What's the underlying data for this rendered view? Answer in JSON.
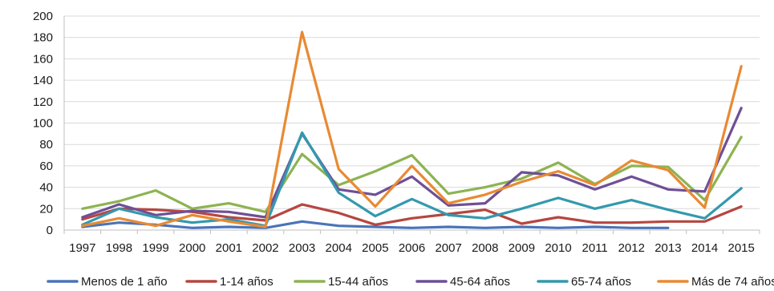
{
  "chart_data": {
    "type": "line",
    "x": [
      "1997",
      "1998",
      "1999",
      "2000",
      "2001",
      "2002",
      "2003",
      "2004",
      "2005",
      "2006",
      "2007",
      "2008",
      "2009",
      "2010",
      "2011",
      "2012",
      "2013",
      "2014",
      "2015"
    ],
    "ylim": [
      0,
      200
    ],
    "yticks": [
      0,
      20,
      40,
      60,
      80,
      100,
      120,
      140,
      160,
      180,
      200
    ],
    "grid": "horizontal",
    "legend_position": "bottom",
    "series": [
      {
        "name": "Menos de 1 año",
        "color": "#4a74b8",
        "values": [
          3,
          7,
          5,
          2,
          3,
          2,
          8,
          4,
          3,
          2,
          3,
          2,
          3,
          2,
          3,
          2,
          2,
          null,
          null
        ]
      },
      {
        "name": "1-14 años",
        "color": "#b64640",
        "values": [
          10,
          20,
          19,
          17,
          12,
          9,
          24,
          16,
          5,
          11,
          15,
          19,
          6,
          12,
          7,
          7,
          8,
          8,
          22
        ]
      },
      {
        "name": "15-44 años",
        "color": "#8db352",
        "values": [
          20,
          27,
          37,
          20,
          25,
          17,
          71,
          42,
          55,
          70,
          34,
          40,
          48,
          63,
          43,
          60,
          59,
          28,
          87
        ]
      },
      {
        "name": "45-64 años",
        "color": "#6f4f96",
        "values": [
          12,
          24,
          14,
          18,
          17,
          12,
          90,
          38,
          33,
          50,
          23,
          25,
          54,
          51,
          38,
          50,
          38,
          36,
          114
        ]
      },
      {
        "name": "65-74 años",
        "color": "#3399ae",
        "values": [
          5,
          20,
          12,
          7,
          10,
          4,
          91,
          35,
          13,
          29,
          14,
          11,
          20,
          30,
          20,
          28,
          19,
          11,
          39
        ]
      },
      {
        "name": "Más de 74 años",
        "color": "#e88a33",
        "values": [
          4,
          11,
          4,
          14,
          8,
          3,
          185,
          57,
          22,
          60,
          25,
          33,
          45,
          55,
          42,
          65,
          56,
          21,
          153
        ]
      }
    ]
  }
}
